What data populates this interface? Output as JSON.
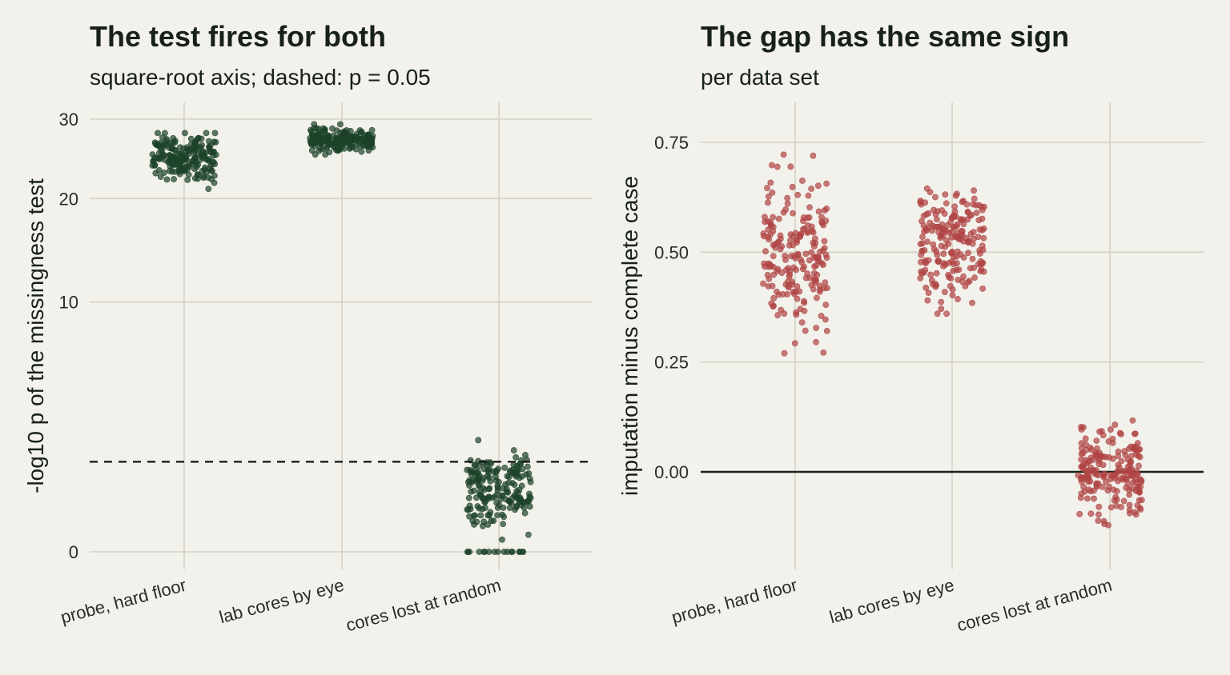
{
  "chart_data": [
    {
      "type": "scatter",
      "title": "The test fires for both",
      "subtitle": "square-root axis; dashed: p = 0.05",
      "ylabel": "-log10 p of the missingness test",
      "xlabel": "",
      "y_scale": "sqrt",
      "ylim": [
        0,
        31.5
      ],
      "yticks": [
        0,
        10,
        20,
        30
      ],
      "reference_line": 1.301,
      "grid": true,
      "point_color": "#1d4229",
      "categories": [
        "probe, hard floor",
        "lab cores by eye",
        "cores lost at random"
      ],
      "groups": [
        {
          "category": "probe, hard floor",
          "n": 200,
          "center": 25.0,
          "spread": 1.6,
          "min": 20.2,
          "max": 28.1
        },
        {
          "category": "lab cores by eye",
          "n": 200,
          "center": 27.3,
          "spread": 0.7,
          "min": 25.3,
          "max": 29.3
        },
        {
          "category": "cores lost at random",
          "n": 200,
          "center": 0.55,
          "spread": 0.45,
          "min": 0.0,
          "max": 2.0
        }
      ]
    },
    {
      "type": "scatter",
      "title": "The gap has the same sign",
      "subtitle": "per data set",
      "ylabel": "imputation minus complete case",
      "xlabel": "",
      "ylim": [
        -0.2,
        0.82
      ],
      "yticks": [
        0.0,
        0.25,
        0.5,
        0.75
      ],
      "ytick_labels": [
        "0.00",
        "0.25",
        "0.50",
        "0.75"
      ],
      "reference_line": 0,
      "grid": true,
      "point_color": "#b04545",
      "categories": [
        "probe, hard floor",
        "lab cores by eye",
        "cores lost at random"
      ],
      "groups": [
        {
          "category": "probe, hard floor",
          "n": 200,
          "center": 0.48,
          "spread": 0.09,
          "min": 0.27,
          "max": 0.79
        },
        {
          "category": "lab cores by eye",
          "n": 200,
          "center": 0.52,
          "spread": 0.07,
          "min": 0.36,
          "max": 0.73
        },
        {
          "category": "cores lost at random",
          "n": 200,
          "center": 0.0,
          "spread": 0.05,
          "min": -0.18,
          "max": 0.17
        }
      ]
    }
  ]
}
